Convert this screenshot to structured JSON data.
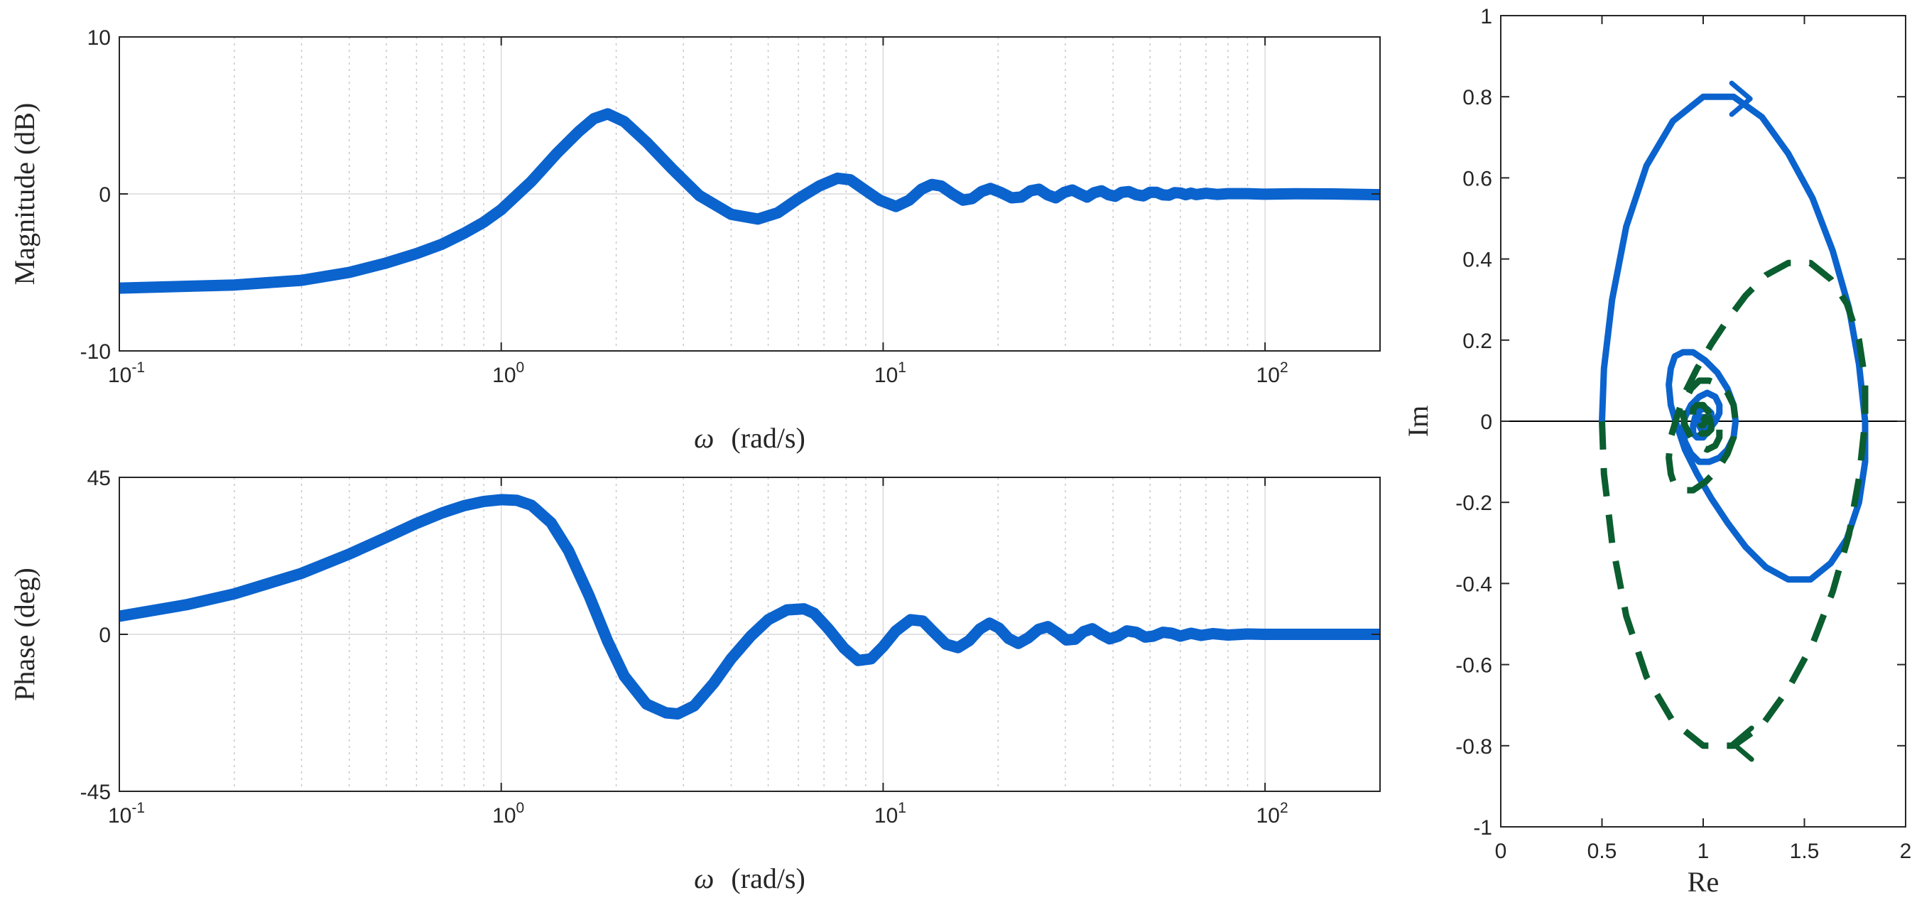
{
  "chart_data": [
    {
      "type": "line",
      "panel": "bode-magnitude",
      "xlabel_symbol": "ω",
      "xlabel_unit": "(rad/s)",
      "ylabel": "Magnitude (dB)",
      "xscale": "log",
      "xlim": [
        0.1,
        200
      ],
      "ylim": [
        -10,
        10
      ],
      "xticks": [
        {
          "base": "10",
          "exp": "-1",
          "value": 0.1
        },
        {
          "base": "10",
          "exp": "0",
          "value": 1
        },
        {
          "base": "10",
          "exp": "1",
          "value": 10
        },
        {
          "base": "10",
          "exp": "2",
          "value": 100
        }
      ],
      "yticks": [
        {
          "label": "10",
          "value": 10
        },
        {
          "label": "0",
          "value": 0
        },
        {
          "label": "-10",
          "value": -10
        }
      ],
      "grid": "on",
      "series": [
        {
          "color": "#0b63ce",
          "x": [
            0.1,
            0.2,
            0.3,
            0.4,
            0.5,
            0.6,
            0.7,
            0.8,
            0.9,
            1.0,
            1.2,
            1.4,
            1.6,
            1.75,
            1.9,
            2.1,
            2.4,
            2.8,
            3.3,
            4.0,
            4.7,
            5.3,
            6.0,
            6.8,
            7.6,
            8.2,
            8.9,
            9.8,
            10.8,
            11.7,
            12.6,
            13.4,
            14.2,
            15.2,
            16.2,
            17.1,
            18.1,
            19.1,
            20.3,
            21.7,
            23.0,
            24.3,
            25.6,
            26.9,
            28.3,
            29.8,
            31.3,
            32.8,
            34.2,
            35.7,
            37.3,
            38.9,
            40.5,
            42.1,
            44.0,
            46.0,
            48.0,
            50.0,
            52.0,
            54.0,
            56.0,
            58.0,
            60.0,
            62.0,
            64.0,
            66.0,
            70.0,
            75.0,
            80.0,
            90.0,
            100.0,
            120.0,
            150.0,
            200.0
          ],
          "y": [
            -6.0,
            -5.8,
            -5.5,
            -5.0,
            -4.4,
            -3.8,
            -3.2,
            -2.5,
            -1.8,
            -1.0,
            0.8,
            2.6,
            4.0,
            4.8,
            5.1,
            4.6,
            3.3,
            1.6,
            -0.1,
            -1.3,
            -1.6,
            -1.2,
            -0.3,
            0.5,
            1.0,
            0.9,
            0.3,
            -0.4,
            -0.8,
            -0.4,
            0.3,
            0.6,
            0.5,
            0.0,
            -0.4,
            -0.3,
            0.15,
            0.35,
            0.1,
            -0.25,
            -0.2,
            0.2,
            0.3,
            -0.05,
            -0.25,
            0.1,
            0.25,
            0.0,
            -0.2,
            0.08,
            0.2,
            -0.05,
            -0.15,
            0.1,
            0.15,
            -0.05,
            -0.12,
            0.1,
            0.1,
            -0.06,
            -0.08,
            0.08,
            0.06,
            -0.05,
            0.05,
            -0.04,
            0.04,
            -0.03,
            0.02,
            0.02,
            -0.02,
            0.01,
            0.0,
            -0.05
          ]
        }
      ]
    },
    {
      "type": "line",
      "panel": "bode-phase",
      "xlabel_symbol": "ω",
      "xlabel_unit": "(rad/s)",
      "ylabel": "Phase (deg)",
      "xscale": "log",
      "xlim": [
        0.1,
        200
      ],
      "ylim": [
        -45,
        45
      ],
      "xticks": [
        {
          "base": "10",
          "exp": "-1",
          "value": 0.1
        },
        {
          "base": "10",
          "exp": "0",
          "value": 1
        },
        {
          "base": "10",
          "exp": "1",
          "value": 10
        },
        {
          "base": "10",
          "exp": "2",
          "value": 100
        }
      ],
      "yticks": [
        {
          "label": "45",
          "value": 45
        },
        {
          "label": "0",
          "value": 0
        },
        {
          "label": "-45",
          "value": -45
        }
      ],
      "grid": "on",
      "series": [
        {
          "color": "#0b63ce",
          "x": [
            0.1,
            0.15,
            0.2,
            0.3,
            0.4,
            0.5,
            0.6,
            0.7,
            0.8,
            0.9,
            1.0,
            1.1,
            1.2,
            1.35,
            1.5,
            1.7,
            1.9,
            2.1,
            2.4,
            2.7,
            2.9,
            3.2,
            3.6,
            4.0,
            4.5,
            5.0,
            5.6,
            6.2,
            6.6,
            7.2,
            7.9,
            8.6,
            9.3,
            10.0,
            10.8,
            11.8,
            12.7,
            13.6,
            14.6,
            15.7,
            16.8,
            17.9,
            19.0,
            20.1,
            21.3,
            22.6,
            24.0,
            25.5,
            27.0,
            28.6,
            30.2,
            31.8,
            33.5,
            35.3,
            37.2,
            39.2,
            41.3,
            43.5,
            46.0,
            48.5,
            51.0,
            54.0,
            57.0,
            60.0,
            64.0,
            68.0,
            73.0,
            80.0,
            90.0,
            100.0,
            120.0,
            150.0,
            200.0
          ],
          "y": [
            5.2,
            8.5,
            11.6,
            17.5,
            23.0,
            27.8,
            31.8,
            34.8,
            36.9,
            38.1,
            38.6,
            38.4,
            37.0,
            32.0,
            24.0,
            11.0,
            -2.0,
            -12.0,
            -20.0,
            -22.5,
            -22.8,
            -20.5,
            -14.0,
            -7.0,
            -0.5,
            4.2,
            7.0,
            7.3,
            6.0,
            1.5,
            -4.0,
            -7.5,
            -7.0,
            -3.5,
            1.0,
            4.2,
            3.8,
            0.5,
            -2.8,
            -3.8,
            -1.8,
            1.5,
            3.2,
            1.8,
            -1.2,
            -2.6,
            -1.0,
            1.4,
            2.2,
            0.4,
            -1.6,
            -1.4,
            0.8,
            1.6,
            0.0,
            -1.3,
            -0.5,
            1.0,
            0.6,
            -0.8,
            -0.5,
            0.6,
            0.3,
            -0.5,
            0.3,
            -0.3,
            0.2,
            -0.2,
            0.1,
            0.0,
            0.0,
            0.0,
            0.0
          ]
        }
      ]
    },
    {
      "type": "line",
      "panel": "nyquist",
      "xlabel": "Re",
      "ylabel": "Im",
      "xlim": [
        0,
        2
      ],
      "ylim": [
        -1,
        1
      ],
      "xticks": [
        {
          "label": "0",
          "value": 0
        },
        {
          "label": "0.5",
          "value": 0.5
        },
        {
          "label": "1",
          "value": 1
        },
        {
          "label": "1.5",
          "value": 1.5
        },
        {
          "label": "2",
          "value": 2
        }
      ],
      "yticks": [
        {
          "label": "1",
          "value": 1
        },
        {
          "label": "0.8",
          "value": 0.8
        },
        {
          "label": "0.6",
          "value": 0.6
        },
        {
          "label": "0.4",
          "value": 0.4
        },
        {
          "label": "0.2",
          "value": 0.2
        },
        {
          "label": "0",
          "value": 0
        },
        {
          "label": "-0.2",
          "value": -0.2
        },
        {
          "label": "-0.4",
          "value": -0.4
        },
        {
          "label": "-0.6",
          "value": -0.6
        },
        {
          "label": "-0.8",
          "value": -0.8
        },
        {
          "label": "-1",
          "value": -1
        }
      ],
      "grid": "off",
      "zero_line": true,
      "series": [
        {
          "style": "solid",
          "color": "#0b63ce",
          "x": [
            0.5,
            0.51,
            0.55,
            0.62,
            0.72,
            0.85,
            1.0,
            1.15,
            1.29,
            1.42,
            1.54,
            1.64,
            1.72,
            1.77,
            1.8,
            1.8,
            1.77,
            1.71,
            1.63,
            1.53,
            1.42,
            1.31,
            1.21,
            1.12,
            1.04,
            0.97,
            0.91,
            0.87,
            0.84,
            0.83,
            0.84,
            0.86,
            0.9,
            0.95,
            1.01,
            1.07,
            1.12,
            1.15,
            1.16,
            1.15,
            1.12,
            1.08,
            1.03,
            0.98,
            0.94,
            0.91,
            0.9,
            0.91,
            0.94,
            0.98,
            1.02,
            1.06,
            1.08,
            1.08,
            1.06,
            1.03,
            1.0,
            0.97,
            0.95,
            0.95,
            0.96,
            0.99,
            1.02,
            1.04,
            1.04,
            1.03,
            1.01,
            0.99,
            0.98,
            0.98,
            0.99,
            1.0,
            1.01,
            1.02,
            1.01,
            1.0
          ],
          "y": [
            0.0,
            0.13,
            0.3,
            0.48,
            0.63,
            0.74,
            0.8,
            0.8,
            0.75,
            0.66,
            0.55,
            0.42,
            0.28,
            0.14,
            0.0,
            -0.1,
            -0.2,
            -0.29,
            -0.35,
            -0.39,
            -0.39,
            -0.36,
            -0.31,
            -0.25,
            -0.19,
            -0.13,
            -0.07,
            -0.01,
            0.04,
            0.09,
            0.13,
            0.16,
            0.17,
            0.17,
            0.15,
            0.12,
            0.08,
            0.04,
            0.0,
            -0.04,
            -0.07,
            -0.09,
            -0.1,
            -0.1,
            -0.08,
            -0.05,
            -0.02,
            0.01,
            0.04,
            0.06,
            0.07,
            0.06,
            0.04,
            0.02,
            0.0,
            -0.02,
            -0.04,
            -0.04,
            -0.03,
            -0.01,
            0.01,
            0.03,
            0.03,
            0.02,
            0.01,
            -0.01,
            -0.02,
            -0.02,
            -0.01,
            0.0,
            0.01,
            0.01,
            0.0,
            0.0,
            -0.01,
            0.0
          ],
          "arrow_at": {
            "x": 1.19,
            "y": 0.795,
            "direction": "right"
          }
        },
        {
          "style": "dashed",
          "color": "#0b5e2f",
          "x": [
            0.5,
            0.51,
            0.55,
            0.62,
            0.72,
            0.85,
            1.0,
            1.15,
            1.29,
            1.42,
            1.54,
            1.64,
            1.72,
            1.77,
            1.8,
            1.8,
            1.77,
            1.71,
            1.63,
            1.53,
            1.42,
            1.31,
            1.21,
            1.12,
            1.04,
            0.97,
            0.91,
            0.87,
            0.84,
            0.83,
            0.84,
            0.86,
            0.9,
            0.95,
            1.01,
            1.07,
            1.12,
            1.15,
            1.16,
            1.15,
            1.12,
            1.08,
            1.03,
            0.98,
            0.94,
            0.91,
            0.9,
            0.91,
            0.94,
            0.98,
            1.02,
            1.06,
            1.08,
            1.08,
            1.06,
            1.03,
            1.0,
            0.97,
            0.95,
            0.95,
            0.96,
            0.99,
            1.02,
            1.04,
            1.04,
            1.03,
            1.01,
            0.99,
            0.98,
            0.98,
            0.99,
            1.0,
            1.01,
            1.02,
            1.01,
            1.0
          ],
          "y": [
            0.0,
            -0.13,
            -0.3,
            -0.48,
            -0.63,
            -0.74,
            -0.8,
            -0.8,
            -0.75,
            -0.66,
            -0.55,
            -0.42,
            -0.28,
            -0.14,
            0.0,
            0.1,
            0.2,
            0.29,
            0.35,
            0.39,
            0.39,
            0.36,
            0.31,
            0.25,
            0.19,
            0.13,
            0.07,
            0.01,
            -0.04,
            -0.09,
            -0.13,
            -0.16,
            -0.17,
            -0.17,
            -0.15,
            -0.12,
            -0.08,
            -0.04,
            0.0,
            0.04,
            0.07,
            0.09,
            0.1,
            0.1,
            0.08,
            0.05,
            0.02,
            -0.01,
            -0.04,
            -0.06,
            -0.07,
            -0.06,
            -0.04,
            -0.02,
            0.0,
            0.02,
            0.04,
            0.04,
            0.03,
            0.01,
            -0.01,
            -0.03,
            -0.03,
            -0.02,
            -0.01,
            0.01,
            0.02,
            0.02,
            0.01,
            0.0,
            -0.01,
            -0.01,
            0.0,
            0.0,
            0.01,
            0.0
          ],
          "arrow_at": {
            "x": 1.19,
            "y": -0.795,
            "direction": "left"
          }
        }
      ]
    }
  ]
}
